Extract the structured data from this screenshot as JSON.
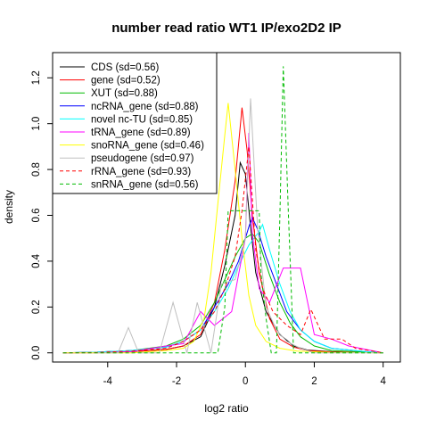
{
  "chart_data": {
    "type": "line",
    "title": "number read ratio WT1 IP/exo2D2 IP",
    "xlabel": "log2 ratio",
    "ylabel": "density",
    "xlim": [
      -5.6,
      4.5
    ],
    "ylim": [
      -0.04,
      1.31
    ],
    "xticks": [
      -4,
      -2,
      0,
      2,
      4
    ],
    "yticks": [
      0.0,
      0.2,
      0.4,
      0.6,
      0.8,
      1.0,
      1.2
    ],
    "grid": false,
    "legend_position": "top-left",
    "series": [
      {
        "name": "CDS (sd=0.56)",
        "color": "#000000",
        "dash": "solid",
        "x": [
          -5.3,
          -4.3,
          -3.3,
          -2.3,
          -1.8,
          -1.3,
          -0.9,
          -0.6,
          -0.3,
          -0.15,
          0.0,
          0.15,
          0.3,
          0.6,
          1.0,
          1.4,
          1.8,
          2.5,
          3.5,
          4.0
        ],
        "y": [
          0.0,
          0.002,
          0.005,
          0.015,
          0.03,
          0.07,
          0.2,
          0.38,
          0.6,
          0.83,
          0.78,
          0.55,
          0.35,
          0.18,
          0.08,
          0.03,
          0.012,
          0.005,
          0.002,
          0.0
        ]
      },
      {
        "name": "gene (sd=0.52)",
        "color": "#ff0000",
        "dash": "solid",
        "x": [
          -5.3,
          -4.3,
          -3.3,
          -2.3,
          -1.8,
          -1.3,
          -0.9,
          -0.6,
          -0.3,
          -0.1,
          0.05,
          0.2,
          0.4,
          0.7,
          1.0,
          1.4,
          1.8,
          2.5,
          3.5,
          4.0
        ],
        "y": [
          0.0,
          0.002,
          0.005,
          0.015,
          0.03,
          0.08,
          0.22,
          0.45,
          0.75,
          1.07,
          0.88,
          0.6,
          0.35,
          0.15,
          0.06,
          0.025,
          0.01,
          0.004,
          0.002,
          0.0
        ]
      },
      {
        "name": "XUT (sd=0.88)",
        "color": "#00bb00",
        "dash": "solid",
        "x": [
          -5.3,
          -4.3,
          -3.3,
          -2.3,
          -1.8,
          -1.3,
          -0.9,
          -0.6,
          -0.3,
          0.0,
          0.2,
          0.4,
          0.7,
          1.0,
          1.3,
          1.6,
          2.0,
          2.5,
          3.5,
          4.0
        ],
        "y": [
          0.0,
          0.003,
          0.01,
          0.03,
          0.06,
          0.12,
          0.22,
          0.32,
          0.42,
          0.5,
          0.52,
          0.48,
          0.34,
          0.22,
          0.13,
          0.07,
          0.03,
          0.01,
          0.003,
          0.0
        ]
      },
      {
        "name": "ncRNA_gene (sd=0.88)",
        "color": "#0000ff",
        "dash": "solid",
        "x": [
          -5.3,
          -4.3,
          -3.3,
          -2.3,
          -1.8,
          -1.3,
          -0.9,
          -0.5,
          -0.2,
          0.1,
          0.2,
          0.35,
          0.6,
          0.9,
          1.2,
          1.6,
          2.0,
          2.5,
          3.5,
          4.0
        ],
        "y": [
          0.0,
          0.003,
          0.01,
          0.025,
          0.05,
          0.1,
          0.2,
          0.3,
          0.4,
          0.55,
          0.59,
          0.54,
          0.42,
          0.3,
          0.18,
          0.1,
          0.05,
          0.02,
          0.005,
          0.0
        ]
      },
      {
        "name": "novel nc-TU (sd=0.85)",
        "color": "#00ffff",
        "dash": "solid",
        "x": [
          -5.3,
          -4.3,
          -3.3,
          -2.3,
          -1.8,
          -1.3,
          -0.9,
          -0.5,
          -0.2,
          0.1,
          0.4,
          0.5,
          0.7,
          1.0,
          1.3,
          1.6,
          2.0,
          2.5,
          3.5,
          4.0
        ],
        "y": [
          0.0,
          0.003,
          0.01,
          0.025,
          0.05,
          0.1,
          0.18,
          0.28,
          0.38,
          0.47,
          0.53,
          0.56,
          0.45,
          0.3,
          0.18,
          0.1,
          0.05,
          0.02,
          0.005,
          0.0
        ]
      },
      {
        "name": "tRNA_gene (sd=0.89)",
        "color": "#ff00ff",
        "dash": "solid",
        "x": [
          -5.3,
          -4.3,
          -3.3,
          -2.3,
          -1.8,
          -1.3,
          -0.9,
          -0.4,
          0.0,
          0.1,
          0.2,
          0.4,
          0.7,
          1.1,
          1.6,
          2.0,
          2.5,
          3.0,
          4.0
        ],
        "y": [
          0.0,
          0.0,
          0.005,
          0.03,
          0.04,
          0.18,
          0.12,
          0.18,
          0.5,
          0.96,
          0.52,
          0.28,
          0.22,
          0.37,
          0.37,
          0.08,
          0.06,
          0.03,
          0.0
        ]
      },
      {
        "name": "snoRNA_gene (sd=0.46)",
        "color": "#ffff00",
        "dash": "solid",
        "x": [
          -5.3,
          -4.3,
          -3.3,
          -2.3,
          -1.8,
          -1.5,
          -1.2,
          -1.0,
          -0.8,
          -0.6,
          -0.5,
          -0.3,
          -0.1,
          0.1,
          0.3,
          0.6,
          1.0,
          1.5,
          2.5,
          4.0
        ],
        "y": [
          0.0,
          0.0,
          0.0,
          0.01,
          0.02,
          0.05,
          0.15,
          0.35,
          0.65,
          0.95,
          1.09,
          0.8,
          0.5,
          0.25,
          0.12,
          0.05,
          0.02,
          0.008,
          0.002,
          0.0
        ]
      },
      {
        "name": "pseudogene (sd=0.97)",
        "color": "#c0c0c0",
        "dash": "solid",
        "x": [
          -4.3,
          -3.7,
          -3.4,
          -3.1,
          -2.5,
          -2.1,
          -1.7,
          -1.4,
          -1.0,
          -0.7,
          -0.3,
          0.0,
          0.15,
          0.35,
          0.6,
          0.9,
          1.2,
          1.6,
          2.0,
          3.0,
          4.0
        ],
        "y": [
          0.0,
          0.0,
          0.11,
          0.0,
          0.0,
          0.22,
          0.0,
          0.22,
          0.0,
          0.3,
          0.32,
          0.5,
          1.11,
          0.55,
          0.2,
          0.1,
          0.05,
          0.02,
          0.0,
          0.0,
          0.0
        ]
      },
      {
        "name": "rRNA_gene (sd=0.93)",
        "color": "#ff0000",
        "dash": "dashed",
        "x": [
          -5.3,
          -4.3,
          -3.3,
          -2.3,
          -1.8,
          -1.3,
          -0.9,
          -0.6,
          -0.3,
          -0.1,
          0.1,
          0.3,
          0.5,
          0.8,
          1.2,
          1.6,
          1.9,
          2.3,
          2.8,
          3.2,
          4.0
        ],
        "y": [
          0.0,
          0.002,
          0.008,
          0.02,
          0.05,
          0.1,
          0.18,
          0.28,
          0.42,
          0.62,
          0.9,
          0.45,
          0.28,
          0.18,
          0.12,
          0.08,
          0.19,
          0.06,
          0.06,
          0.02,
          0.0
        ]
      },
      {
        "name": "snRNA_gene (sd=0.56)",
        "color": "#00bb00",
        "dash": "dashed",
        "x": [
          -5.3,
          -1.1,
          -0.8,
          -0.6,
          -0.5,
          -0.3,
          -0.15,
          0.3,
          0.4,
          0.45,
          0.6,
          0.75,
          0.9,
          1.0,
          1.1,
          1.25,
          1.4,
          4.0
        ],
        "y": [
          0.0,
          0.0,
          0.0,
          0.2,
          0.62,
          0.62,
          0.62,
          0.62,
          0.62,
          0.35,
          0.15,
          0.0,
          0.0,
          0.6,
          1.25,
          0.6,
          0.0,
          0.0
        ]
      }
    ]
  }
}
